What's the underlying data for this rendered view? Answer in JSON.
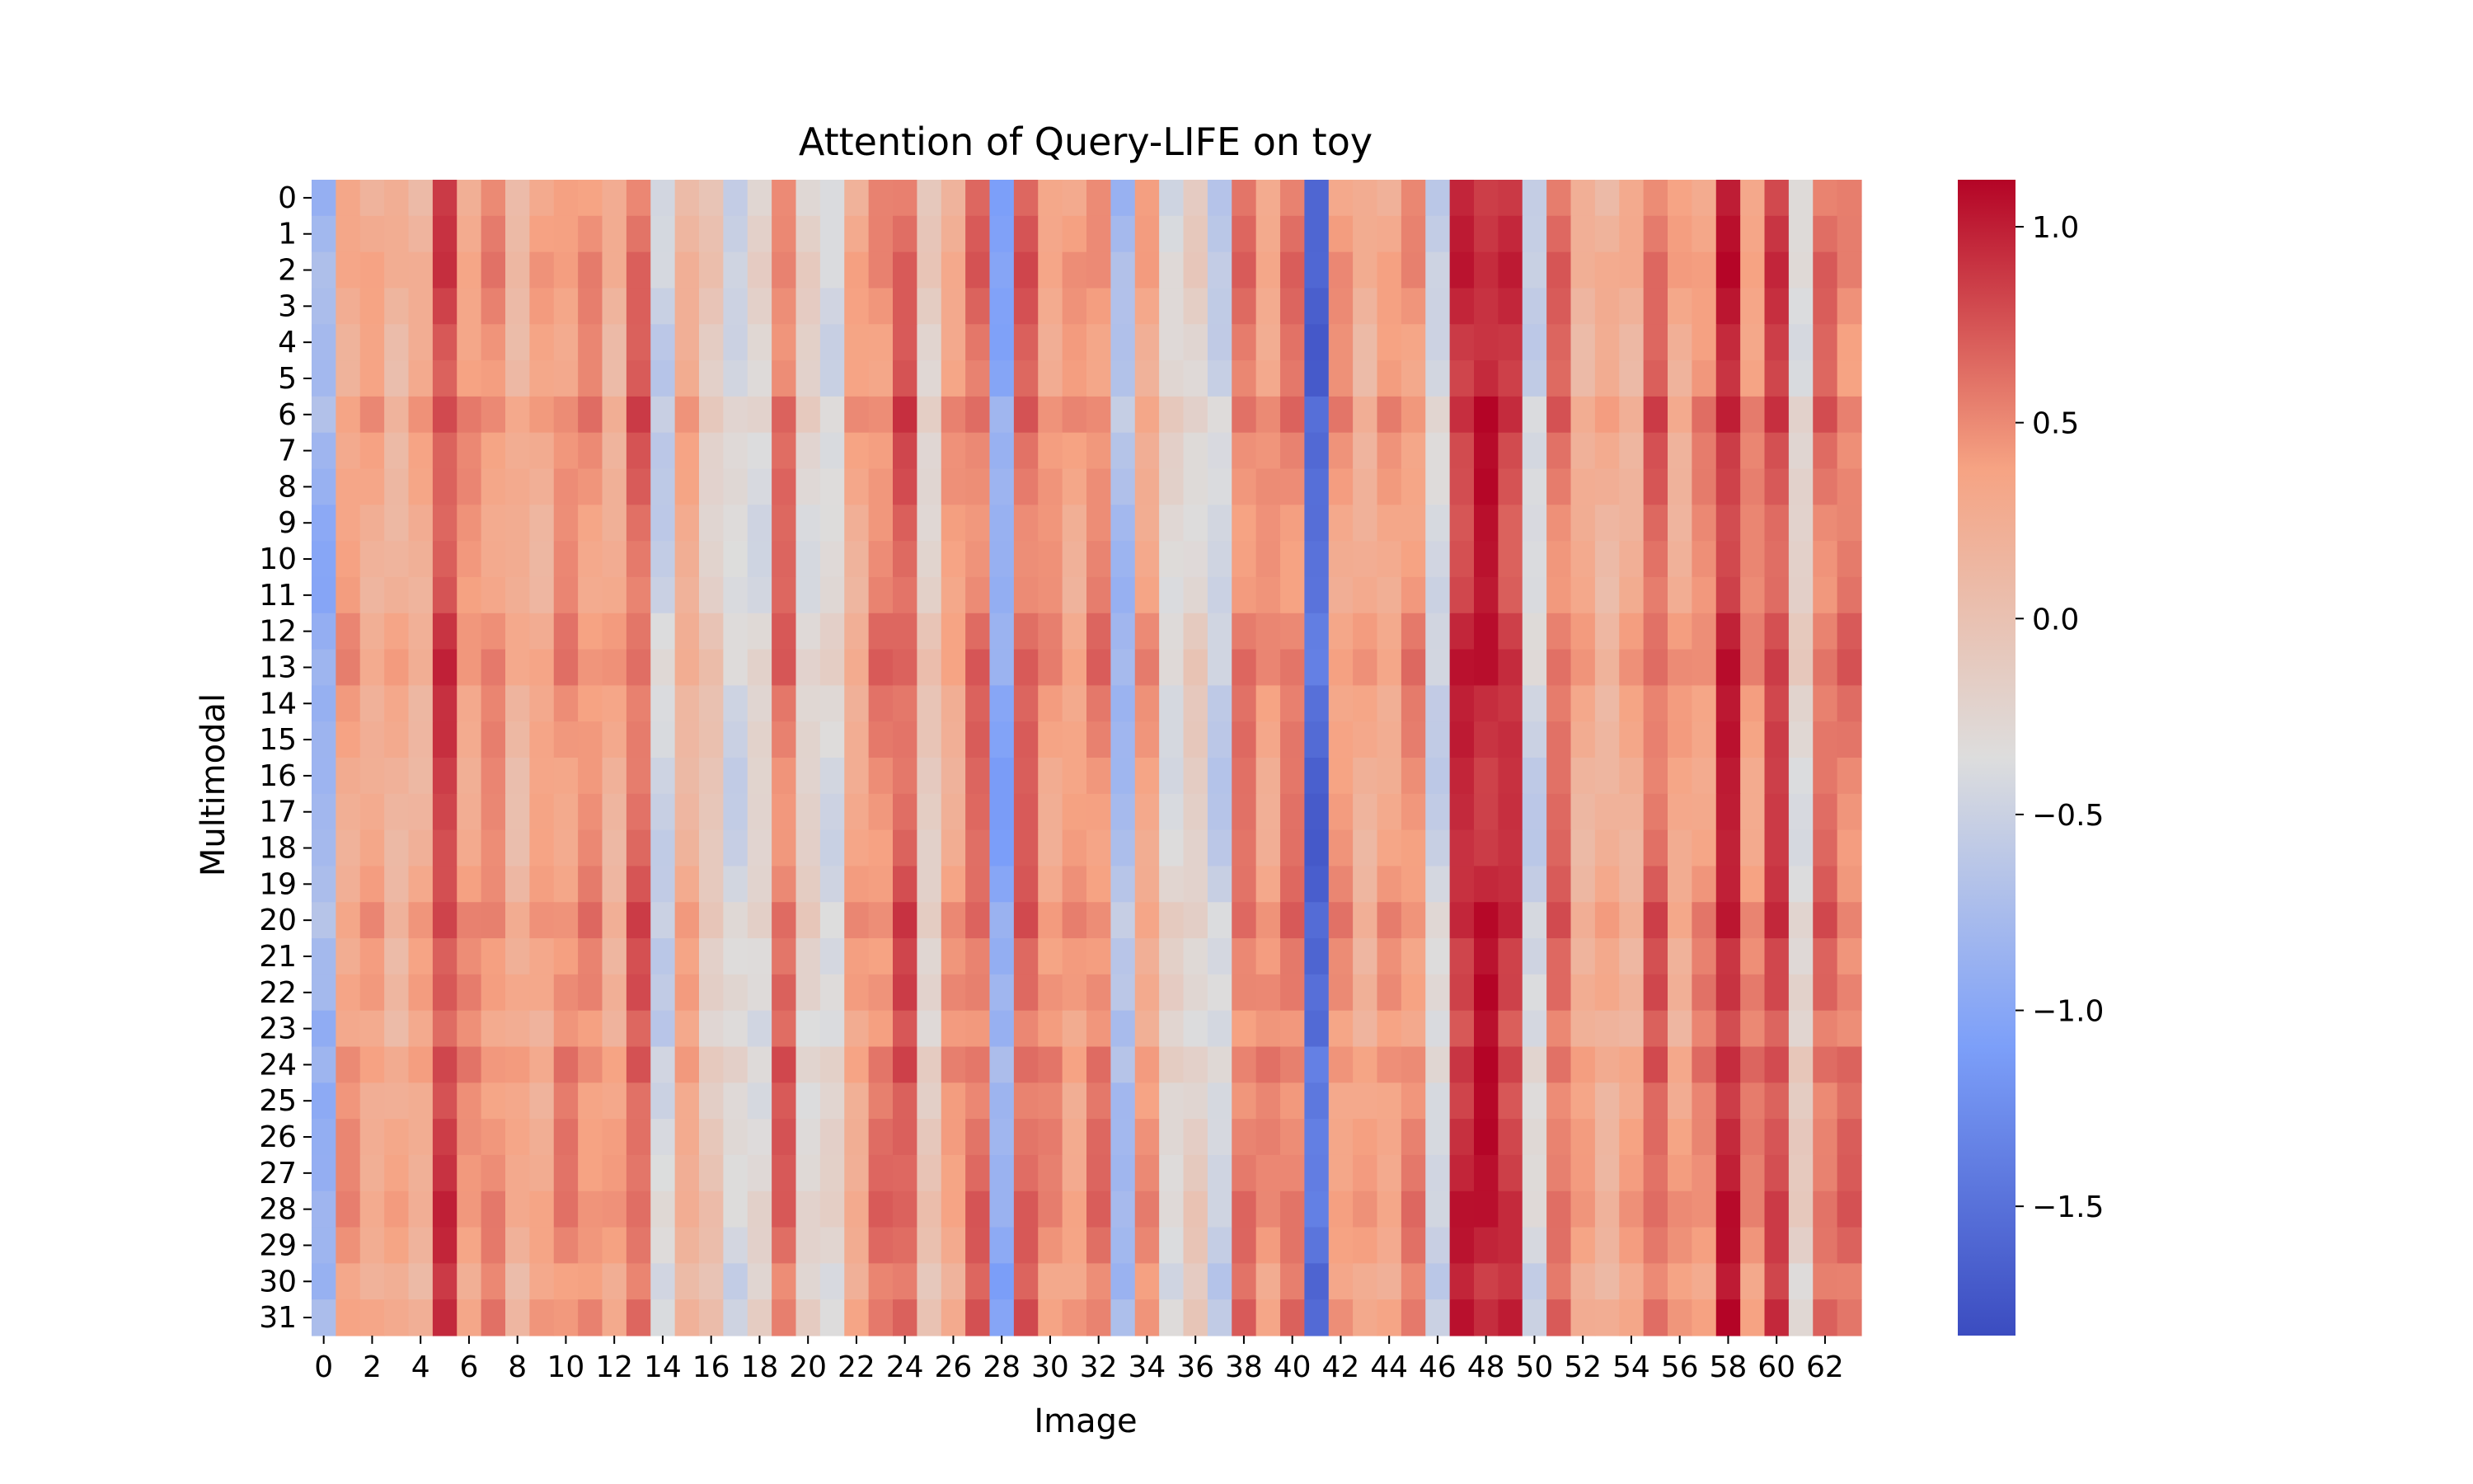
{
  "chart_data": {
    "type": "heatmap",
    "title": "Attention of Query-LIFE on toy",
    "xlabel": "Image",
    "ylabel": "Multimodal",
    "rows": 32,
    "cols": 64,
    "x_tick_labels": [
      "0",
      "2",
      "4",
      "6",
      "8",
      "10",
      "12",
      "14",
      "16",
      "18",
      "20",
      "22",
      "24",
      "26",
      "28",
      "30",
      "32",
      "34",
      "36",
      "38",
      "40",
      "42",
      "44",
      "46",
      "48",
      "50",
      "52",
      "54",
      "56",
      "58",
      "60",
      "62"
    ],
    "y_tick_labels": [
      "0",
      "1",
      "2",
      "3",
      "4",
      "5",
      "6",
      "7",
      "8",
      "9",
      "10",
      "11",
      "12",
      "13",
      "14",
      "15",
      "16",
      "17",
      "18",
      "19",
      "20",
      "21",
      "22",
      "23",
      "24",
      "25",
      "26",
      "27",
      "28",
      "29",
      "30",
      "31"
    ],
    "colorbar": {
      "colormap": "coolwarm",
      "vmin": -1.83,
      "vmax": 1.12,
      "ticks": [
        -1.5,
        -1.0,
        -0.5,
        0.0,
        0.5,
        1.0
      ],
      "tick_labels": [
        "−1.5",
        "−1.0",
        "−0.5",
        "0.0",
        "0.5",
        "1.0"
      ]
    },
    "column_profile": [
      -0.9,
      0.3,
      0.25,
      0.15,
      0.2,
      0.75,
      0.35,
      0.4,
      0.15,
      0.25,
      0.4,
      0.4,
      0.2,
      0.6,
      -0.55,
      0.2,
      -0.15,
      -0.45,
      -0.35,
      0.55,
      -0.3,
      -0.4,
      0.25,
      0.45,
      0.65,
      -0.2,
      0.3,
      0.55,
      -1.0,
      0.6,
      0.35,
      0.3,
      0.45,
      -0.8,
      0.3,
      -0.35,
      -0.25,
      -0.55,
      0.5,
      0.35,
      0.5,
      -1.6,
      0.35,
      0.2,
      0.3,
      0.4,
      -0.5,
      0.85,
      0.95,
      0.8,
      -0.5,
      0.55,
      0.2,
      0.15,
      0.2,
      0.6,
      0.25,
      0.4,
      0.9,
      0.4,
      0.75,
      -0.3,
      0.55,
      0.5
    ],
    "row_profile": [
      0.0,
      0.05,
      0.1,
      0.05,
      0.0,
      0.0,
      0.15,
      0.05,
      0.05,
      0.0,
      0.0,
      0.0,
      0.1,
      0.15,
      0.05,
      0.05,
      0.0,
      0.0,
      0.0,
      0.05,
      0.15,
      0.05,
      0.1,
      0.0,
      0.15,
      0.05,
      0.1,
      0.1,
      0.15,
      0.1,
      0.0,
      0.1
    ]
  }
}
